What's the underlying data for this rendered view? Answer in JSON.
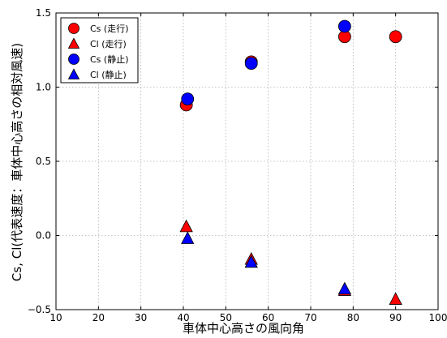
{
  "chart_data": {
    "type": "scatter",
    "xlabel": "車体中心高さの風向角",
    "ylabel": "Cs, Cl(代表速度：車体中心高さの相対風速)",
    "xlim": [
      10,
      100
    ],
    "ylim": [
      -0.5,
      1.5
    ],
    "xticks": [
      "10",
      "20",
      "30",
      "40",
      "50",
      "60",
      "70",
      "80",
      "90",
      "100"
    ],
    "yticks": [
      "−0.5",
      "0.0",
      "0.5",
      "1.0",
      "1.5"
    ],
    "grid": true,
    "legend_position": "top-left",
    "series": [
      {
        "name": "Cs (走行)",
        "marker": "circle",
        "color": "#ff0000",
        "points": [
          {
            "x": 40.7,
            "y": 0.88
          },
          {
            "x": 56.0,
            "y": 1.17
          },
          {
            "x": 78.0,
            "y": 1.34
          },
          {
            "x": 90.0,
            "y": 1.34
          }
        ]
      },
      {
        "name": "Cl (走行)",
        "marker": "triangle",
        "color": "#ff0000",
        "points": [
          {
            "x": 40.7,
            "y": 0.06
          },
          {
            "x": 56.0,
            "y": -0.16
          },
          {
            "x": 78.0,
            "y": -0.37
          },
          {
            "x": 90.0,
            "y": -0.43
          }
        ]
      },
      {
        "name": "Cs (静止)",
        "marker": "circle",
        "color": "#0000ff",
        "points": [
          {
            "x": 41.0,
            "y": 0.92
          },
          {
            "x": 56.0,
            "y": 1.16
          },
          {
            "x": 78.0,
            "y": 1.41
          }
        ]
      },
      {
        "name": "Cl (静止)",
        "marker": "triangle",
        "color": "#0000ff",
        "points": [
          {
            "x": 41.0,
            "y": -0.02
          },
          {
            "x": 56.0,
            "y": -0.18
          },
          {
            "x": 78.0,
            "y": -0.36
          }
        ]
      }
    ]
  }
}
